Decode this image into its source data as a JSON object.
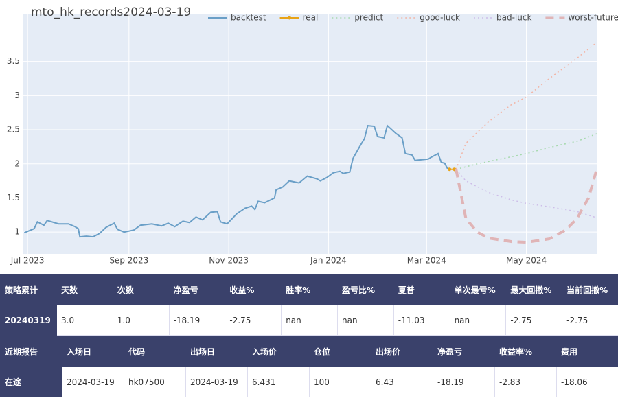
{
  "chart_data": {
    "type": "line",
    "title": "mto_hk_records2024-03-19",
    "xlim": [
      "2023-06-28",
      "2024-06-13"
    ],
    "xticks": [
      {
        "value": "2023-07-01",
        "label": "Jul 2023"
      },
      {
        "value": "2023-09-01",
        "label": "Sep 2023"
      },
      {
        "value": "2023-11-01",
        "label": "Nov 2023"
      },
      {
        "value": "2024-01-01",
        "label": "Jan 2024"
      },
      {
        "value": "2024-03-01",
        "label": "Mar 2024"
      },
      {
        "value": "2024-05-01",
        "label": "May 2024"
      }
    ],
    "ylim": [
      0.68,
      4.2
    ],
    "yticks": [
      1,
      1.5,
      2,
      2.5,
      3,
      3.5
    ],
    "grid": true,
    "series": [
      {
        "name": "backtest",
        "color": "#6a9fc7",
        "dash": "solid",
        "x": [
          "2023-06-29",
          "2023-07-03",
          "2023-07-05",
          "2023-07-07",
          "2023-07-11",
          "2023-07-13",
          "2023-07-20",
          "2023-07-26",
          "2023-07-30",
          "2023-08-01",
          "2023-08-02",
          "2023-08-06",
          "2023-08-10",
          "2023-08-14",
          "2023-08-18",
          "2023-08-23",
          "2023-08-25",
          "2023-08-29",
          "2023-09-04",
          "2023-09-08",
          "2023-09-15",
          "2023-09-21",
          "2023-09-25",
          "2023-09-29",
          "2023-10-04",
          "2023-10-08",
          "2023-10-12",
          "2023-10-16",
          "2023-10-21",
          "2023-10-25",
          "2023-10-27",
          "2023-10-31",
          "2023-11-06",
          "2023-11-11",
          "2023-11-15",
          "2023-11-17",
          "2023-11-19",
          "2023-11-23",
          "2023-11-29",
          "2023-11-30",
          "2023-12-04",
          "2023-12-08",
          "2023-12-14",
          "2023-12-19",
          "2023-12-25",
          "2023-12-27",
          "2023-12-31",
          "2024-01-04",
          "2024-01-08",
          "2024-01-10",
          "2024-01-14",
          "2024-01-16",
          "2024-01-20",
          "2024-01-23",
          "2024-01-25",
          "2024-01-29",
          "2024-01-31",
          "2024-02-04",
          "2024-02-06",
          "2024-02-11",
          "2024-02-15",
          "2024-02-17",
          "2024-02-21",
          "2024-02-23",
          "2024-02-27",
          "2024-03-02",
          "2024-03-04",
          "2024-03-08",
          "2024-03-10",
          "2024-03-12",
          "2024-03-14"
        ],
        "values": [
          0.99,
          1.03,
          1.05,
          1.15,
          1.1,
          1.17,
          1.12,
          1.12,
          1.08,
          1.05,
          0.93,
          0.94,
          0.93,
          0.98,
          1.07,
          1.13,
          1.04,
          1.0,
          1.03,
          1.1,
          1.12,
          1.09,
          1.13,
          1.08,
          1.16,
          1.14,
          1.22,
          1.18,
          1.29,
          1.3,
          1.15,
          1.12,
          1.27,
          1.35,
          1.38,
          1.33,
          1.45,
          1.43,
          1.5,
          1.62,
          1.66,
          1.75,
          1.72,
          1.82,
          1.78,
          1.75,
          1.8,
          1.87,
          1.89,
          1.86,
          1.88,
          2.08,
          2.25,
          2.37,
          2.56,
          2.55,
          2.4,
          2.38,
          2.56,
          2.45,
          2.38,
          2.15,
          2.13,
          2.05,
          2.06,
          2.07,
          2.1,
          2.15,
          2.02,
          2.01,
          1.92
        ]
      },
      {
        "name": "real",
        "color": "#e8a317",
        "dash": "solid",
        "markers": true,
        "x": [
          "2024-03-15",
          "2024-03-18",
          "2024-03-19"
        ],
        "values": [
          1.92,
          1.92,
          1.89
        ]
      },
      {
        "name": "predict",
        "color": "#a6d9ad",
        "dash": "dot",
        "x": [
          "2024-03-19",
          "2024-04-01",
          "2024-04-15",
          "2024-05-01",
          "2024-05-15",
          "2024-06-01",
          "2024-06-13"
        ],
        "values": [
          1.92,
          2.0,
          2.07,
          2.15,
          2.24,
          2.33,
          2.44
        ]
      },
      {
        "name": "good-luck",
        "color": "#f2b5a6",
        "dash": "dot",
        "x": [
          "2024-03-19",
          "2024-03-25",
          "2024-04-08",
          "2024-04-22",
          "2024-05-01",
          "2024-05-15",
          "2024-06-01",
          "2024-06-13"
        ],
        "values": [
          1.92,
          2.3,
          2.62,
          2.87,
          2.98,
          3.25,
          3.55,
          3.78
        ]
      },
      {
        "name": "bad-luck",
        "color": "#cdbde8",
        "dash": "dot",
        "x": [
          "2024-03-19",
          "2024-03-25",
          "2024-04-08",
          "2024-04-22",
          "2024-05-01",
          "2024-05-15",
          "2024-06-01",
          "2024-06-13"
        ],
        "values": [
          1.92,
          1.75,
          1.58,
          1.47,
          1.42,
          1.37,
          1.3,
          1.21
        ]
      },
      {
        "name": "worst-future",
        "color": "#e0b4b6",
        "dash": "dash",
        "x": [
          "2024-03-19",
          "2024-03-25",
          "2024-04-01",
          "2024-04-08",
          "2024-04-22",
          "2024-05-01",
          "2024-05-15",
          "2024-05-25",
          "2024-06-01",
          "2024-06-08",
          "2024-06-13"
        ],
        "values": [
          1.92,
          1.2,
          1.0,
          0.91,
          0.86,
          0.85,
          0.9,
          1.03,
          1.2,
          1.5,
          1.92
        ]
      }
    ]
  },
  "summary_table": {
    "header": [
      "策略累计",
      "天数",
      "次数",
      "净盈亏",
      "收益%",
      "胜率%",
      "盈亏比%",
      "夏普",
      "单次最亏%",
      "最大回撤%",
      "当前回撤%"
    ],
    "rows": [
      [
        "20240319",
        "3.0",
        "1.0",
        "-18.19",
        "-2.75",
        "nan",
        "nan",
        "-11.03",
        "nan",
        "-2.75",
        "-2.75"
      ]
    ]
  },
  "report_table": {
    "header": [
      "近期报告",
      "入场日",
      "代码",
      "出场日",
      "入场价",
      "仓位",
      "出场价",
      "净盈亏",
      "收益率%",
      "费用"
    ],
    "rows": [
      [
        "在途",
        "2024-03-19",
        "hk07500",
        "2024-03-19",
        "6.431",
        "100",
        "6.43",
        "-18.19",
        "-2.83",
        "-18.06"
      ]
    ]
  }
}
